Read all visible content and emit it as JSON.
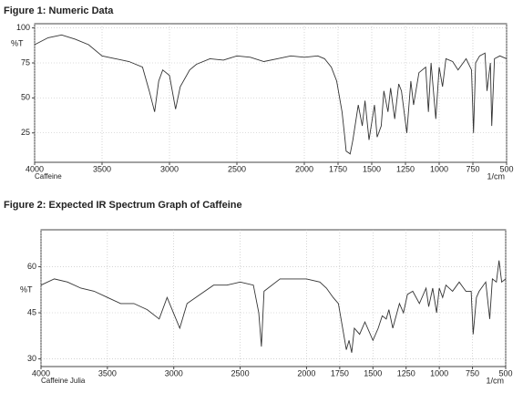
{
  "chart_data": [
    {
      "type": "line",
      "title": "Figure 1: Numeric Data",
      "y_label": "%T",
      "x_label": "1/cm",
      "sample_label": "Caffeine",
      "xlim": [
        4000,
        500
      ],
      "xticks": [
        4000,
        3500,
        3000,
        2500,
        2000,
        1750,
        1500,
        1250,
        1000,
        750,
        500
      ],
      "ylim": [
        4,
        103
      ],
      "yticks": [
        25,
        50,
        75,
        100
      ],
      "grid": true,
      "x": [
        4000,
        3900,
        3800,
        3700,
        3600,
        3500,
        3400,
        3300,
        3200,
        3150,
        3110,
        3080,
        3050,
        3000,
        2955,
        2920,
        2850,
        2800,
        2700,
        2600,
        2500,
        2400,
        2300,
        2200,
        2100,
        2000,
        1900,
        1850,
        1800,
        1760,
        1720,
        1700,
        1690,
        1660,
        1640,
        1600,
        1570,
        1550,
        1520,
        1480,
        1460,
        1430,
        1410,
        1380,
        1360,
        1330,
        1300,
        1280,
        1240,
        1210,
        1190,
        1150,
        1100,
        1080,
        1060,
        1025,
        1000,
        975,
        950,
        900,
        860,
        800,
        760,
        745,
        730,
        700,
        660,
        645,
        620,
        610,
        590,
        550,
        500
      ],
      "series": [
        {
          "color": "#333333",
          "values": [
            88,
            93,
            95,
            92,
            88,
            80,
            78,
            76,
            72,
            55,
            40,
            62,
            70,
            66,
            42,
            58,
            70,
            74,
            78,
            77,
            80,
            79,
            76,
            78,
            80,
            79,
            80,
            78,
            72,
            62,
            40,
            22,
            12,
            10,
            20,
            45,
            30,
            48,
            20,
            45,
            22,
            30,
            55,
            40,
            57,
            35,
            60,
            55,
            25,
            62,
            45,
            68,
            72,
            40,
            75,
            35,
            72,
            58,
            78,
            76,
            70,
            78,
            70,
            25,
            75,
            80,
            82,
            55,
            75,
            30,
            78,
            80,
            78
          ]
        }
      ]
    },
    {
      "type": "line",
      "title": "Figure 2:  Expected IR Spectrum Graph of Caffeine",
      "y_label": "%T",
      "x_label": "1/cm",
      "sample_label": "Caffeine Julia",
      "xlim": [
        4000,
        500
      ],
      "xticks": [
        4000,
        3500,
        3000,
        2500,
        2000,
        1750,
        1500,
        1250,
        1000,
        750,
        500
      ],
      "ylim": [
        27.5,
        72
      ],
      "yticks": [
        30,
        45,
        60
      ],
      "grid": true,
      "x": [
        4000,
        3900,
        3800,
        3700,
        3600,
        3500,
        3400,
        3300,
        3200,
        3110,
        3050,
        2955,
        2900,
        2800,
        2700,
        2600,
        2500,
        2400,
        2360,
        2340,
        2320,
        2200,
        2100,
        2000,
        1900,
        1850,
        1800,
        1760,
        1720,
        1700,
        1680,
        1660,
        1640,
        1600,
        1560,
        1500,
        1460,
        1430,
        1400,
        1380,
        1350,
        1300,
        1270,
        1240,
        1200,
        1150,
        1100,
        1080,
        1050,
        1020,
        1000,
        975,
        950,
        900,
        850,
        800,
        760,
        745,
        720,
        700,
        650,
        620,
        600,
        570,
        550,
        530,
        500
      ],
      "series": [
        {
          "color": "#333333",
          "values": [
            54,
            56,
            55,
            53,
            52,
            50,
            48,
            48,
            46,
            43,
            50,
            40,
            48,
            51,
            54,
            54,
            55,
            54,
            45,
            34,
            52,
            56,
            56,
            56,
            55,
            53,
            50,
            48,
            38,
            33,
            36,
            32,
            40,
            38,
            42,
            36,
            40,
            44,
            43,
            46,
            40,
            48,
            45,
            51,
            52,
            48,
            53,
            47,
            53,
            45,
            53,
            50,
            54,
            52,
            55,
            52,
            52,
            38,
            50,
            52,
            55,
            43,
            56,
            55,
            62,
            55,
            56
          ]
        }
      ]
    }
  ]
}
